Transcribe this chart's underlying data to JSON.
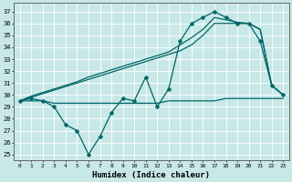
{
  "xlabel": "Humidex (Indice chaleur)",
  "x_ticks": [
    0,
    1,
    2,
    3,
    4,
    5,
    6,
    7,
    8,
    9,
    10,
    11,
    12,
    13,
    14,
    15,
    16,
    17,
    18,
    19,
    20,
    21,
    22,
    23
  ],
  "y_ticks": [
    25,
    26,
    27,
    28,
    29,
    30,
    31,
    32,
    33,
    34,
    35,
    36,
    37
  ],
  "xlim": [
    -0.5,
    23.5
  ],
  "ylim": [
    24.5,
    37.7
  ],
  "bg_color": "#c8e8e8",
  "line_color": "#006666",
  "series_flat": {
    "x": [
      0,
      1,
      2,
      3,
      4,
      5,
      6,
      7,
      8,
      9,
      10,
      11,
      12,
      13,
      14,
      15,
      16,
      17,
      18,
      19,
      20,
      21,
      22,
      23
    ],
    "y": [
      29.5,
      29.5,
      29.5,
      29.3,
      29.3,
      29.3,
      29.3,
      29.3,
      29.3,
      29.3,
      29.3,
      29.3,
      29.3,
      29.5,
      29.5,
      29.5,
      29.5,
      29.5,
      29.7,
      29.7,
      29.7,
      29.7,
      29.7,
      29.7
    ]
  },
  "series_trend1": {
    "x": [
      0,
      1,
      2,
      3,
      4,
      5,
      6,
      7,
      8,
      9,
      10,
      11,
      12,
      13,
      14,
      15,
      16,
      17,
      18,
      19,
      20,
      21,
      22,
      23
    ],
    "y": [
      29.5,
      29.8,
      30.1,
      30.4,
      30.7,
      31.0,
      31.3,
      31.6,
      31.9,
      32.2,
      32.5,
      32.8,
      33.1,
      33.4,
      33.7,
      34.2,
      35.0,
      36.0,
      36.0,
      36.0,
      36.0,
      35.5,
      30.8,
      30.0
    ]
  },
  "series_trend2": {
    "x": [
      0,
      1,
      2,
      3,
      4,
      5,
      6,
      7,
      8,
      9,
      10,
      11,
      12,
      13,
      14,
      15,
      16,
      17,
      18,
      19,
      20,
      21,
      22,
      23
    ],
    "y": [
      29.5,
      29.9,
      30.2,
      30.5,
      30.8,
      31.1,
      31.5,
      31.8,
      32.1,
      32.4,
      32.7,
      33.0,
      33.3,
      33.6,
      34.2,
      34.8,
      35.5,
      36.5,
      36.3,
      36.1,
      36.0,
      35.5,
      30.8,
      30.0
    ]
  },
  "series_zigzag": {
    "x": [
      0,
      1,
      2,
      3,
      4,
      5,
      6,
      7,
      8,
      9,
      10,
      11,
      12,
      13,
      14,
      15,
      16,
      17,
      18,
      19,
      20,
      21,
      22,
      23
    ],
    "y": [
      29.5,
      29.7,
      29.5,
      29.0,
      27.5,
      27.0,
      25.0,
      26.5,
      28.5,
      29.7,
      29.5,
      31.5,
      29.0,
      30.5,
      34.5,
      36.0,
      36.5,
      37.0,
      36.5,
      36.0,
      36.0,
      34.5,
      30.8,
      30.0
    ]
  }
}
